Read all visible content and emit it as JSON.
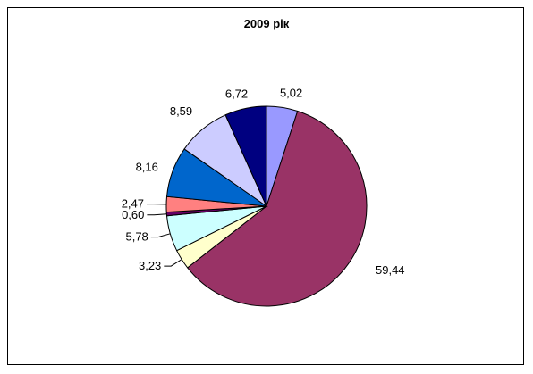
{
  "chart_data": {
    "type": "pie",
    "title": "2009 рік",
    "labels": [
      "5,02",
      "59,44",
      "3,23",
      "5,78",
      "0,60",
      "2,47",
      "8,16",
      "8,59",
      "6,72"
    ],
    "values": [
      5.02,
      59.44,
      3.23,
      5.78,
      0.6,
      2.47,
      8.16,
      8.59,
      6.72
    ],
    "colors": [
      "#9999ff",
      "#993366",
      "#ffffcc",
      "#ccffff",
      "#660066",
      "#ff8080",
      "#0066cc",
      "#ccccff",
      "#000080"
    ],
    "start_angle_deg": 0,
    "direction": "clockwise"
  }
}
